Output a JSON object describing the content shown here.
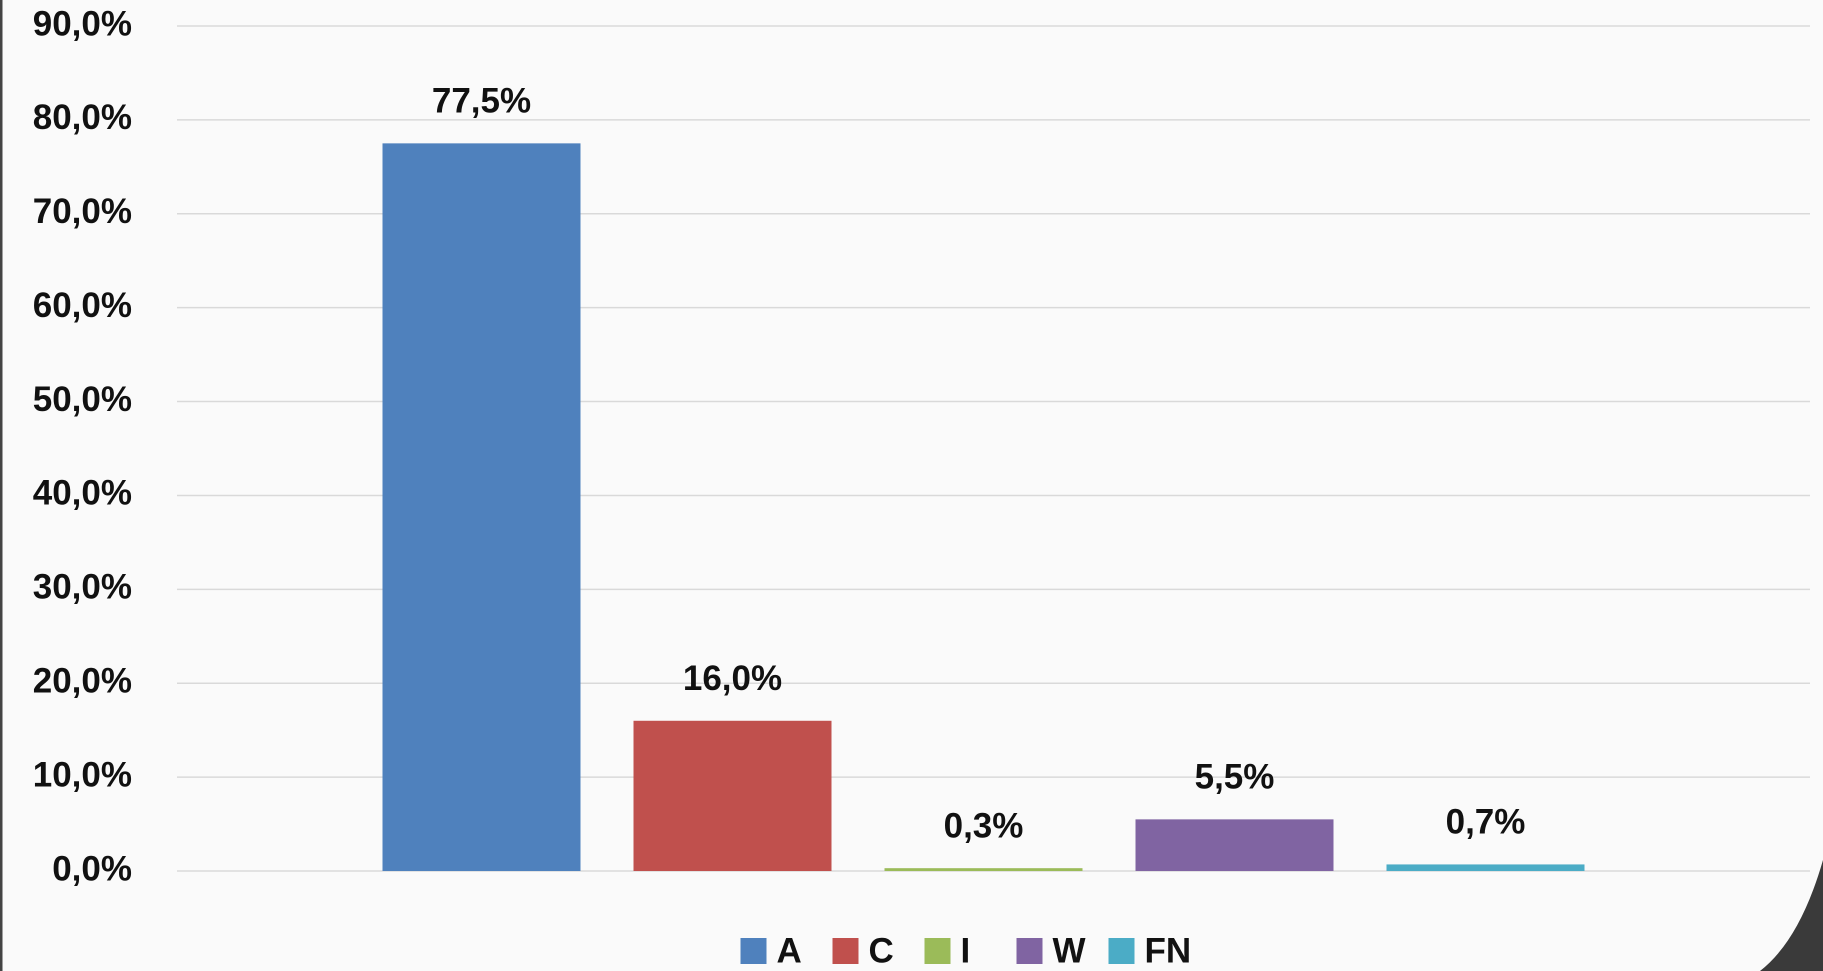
{
  "chart_data": {
    "type": "bar",
    "categories": [
      null
    ],
    "series": [
      {
        "name": "A",
        "color": "#4f81bd",
        "values": [
          77.5
        ],
        "value_labels": [
          "77,5%"
        ]
      },
      {
        "name": "C",
        "color": "#c0504d",
        "values": [
          16.0
        ],
        "value_labels": [
          "16,0%"
        ]
      },
      {
        "name": "I",
        "color": "#9bbb59",
        "values": [
          0.3
        ],
        "value_labels": [
          "0,3%"
        ]
      },
      {
        "name": "W",
        "color": "#8064a2",
        "values": [
          5.5
        ],
        "value_labels": [
          "5,5%"
        ]
      },
      {
        "name": "FN",
        "color": "#4bacc6",
        "values": [
          0.7
        ],
        "value_labels": [
          "0,7%"
        ]
      }
    ],
    "ylim": [
      0,
      90
    ],
    "yticks": [
      {
        "value": 0,
        "label": "0,0%"
      },
      {
        "value": 10,
        "label": "10,0%"
      },
      {
        "value": 20,
        "label": "20,0%"
      },
      {
        "value": 30,
        "label": "30,0%"
      },
      {
        "value": 40,
        "label": "40,0%"
      },
      {
        "value": 50,
        "label": "50,0%"
      },
      {
        "value": 60,
        "label": "60,0%"
      },
      {
        "value": 70,
        "label": "70,0%"
      },
      {
        "value": 80,
        "label": "80,0%"
      },
      {
        "value": 90,
        "label": "90,0%"
      }
    ],
    "grid": true,
    "legend": "bottom"
  }
}
